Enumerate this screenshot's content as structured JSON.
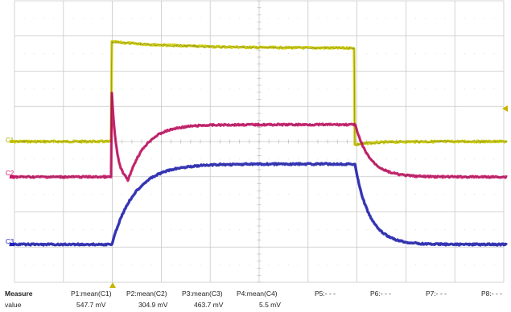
{
  "channels": [
    {
      "id": "C1",
      "label": "C1",
      "color": "#cccc00",
      "text_color": "#a8a800",
      "base_level": 0.0,
      "high_level": 1.0
    },
    {
      "id": "C2",
      "label": "C2",
      "color": "#cc1166",
      "text_color": "#cc1166",
      "base_level": 0.0,
      "high_level": 0.55
    },
    {
      "id": "C3",
      "label": "C3",
      "color": "#2222bb",
      "text_color": "#2222bb",
      "base_level": 0.0,
      "high_level": 1.0
    }
  ],
  "measure": {
    "header_label": "Measure",
    "value_label": "value",
    "params": [
      {
        "name": "P1:mean(C1)",
        "value": "547.7 mV"
      },
      {
        "name": "P2:mean(C2)",
        "value": "304.9 mV"
      },
      {
        "name": "P3:mean(C3)",
        "value": "463.7 mV"
      },
      {
        "name": "P4:mean(C4)",
        "value": "5.5 mV"
      },
      {
        "name": "P5:- - -",
        "value": ""
      },
      {
        "name": "P6:- - -",
        "value": ""
      },
      {
        "name": "P7:- - -",
        "value": ""
      },
      {
        "name": "P8:- - -",
        "value": ""
      }
    ]
  },
  "grid": {
    "divisions_x": 10,
    "divisions_y": 8
  }
}
